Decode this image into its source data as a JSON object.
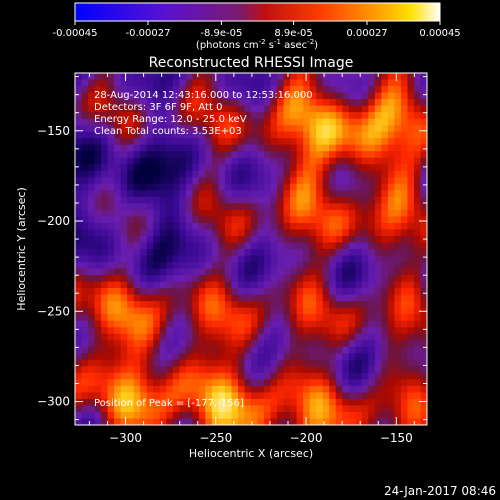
{
  "colorbar": {
    "tick_labels": [
      "-0.00045",
      "-0.00027",
      "-8.9e-05",
      "8.9e-05",
      "0.00027",
      "0.00045"
    ],
    "tick_values": [
      -0.00045,
      -0.00027,
      -8.9e-05,
      8.9e-05,
      0.00027,
      0.00045
    ],
    "range": [
      -0.00045,
      0.00045
    ],
    "unit_prefix": "(photons cm",
    "unit_exp1": "-2",
    "unit_mid1": " s",
    "unit_exp2": "-1",
    "unit_mid2": " asec",
    "unit_exp3": "-2",
    "unit_suffix": ")"
  },
  "chart_data": {
    "type": "heatmap",
    "title": "Reconstructed RHESSI Image",
    "xlabel": "Heliocentric X (arcsec)",
    "ylabel": "Heliocentric Y (arcsec)",
    "xlim": [
      -328,
      -133
    ],
    "ylim": [
      -313,
      -118
    ],
    "x_ticks": [
      -300,
      -250,
      -200,
      -150
    ],
    "y_ticks": [
      -300,
      -250,
      -200,
      -150
    ],
    "x_tick_labels": [
      "−300",
      "−250",
      "−200",
      "−150"
    ],
    "y_tick_labels": [
      "−300",
      "−250",
      "−200",
      "−150"
    ],
    "info_lines": [
      "28-Aug-2014 12:43:16.000 to 12:53:16.000",
      "Detectors: 3F 6F 9F, Att 0",
      "Energy Range: 12.0 - 25.0 keV",
      "Clean     Total counts: 3.53E+03"
    ],
    "peak_text": "Position of Peak = [-177,-156]",
    "peak_position": [
      -177,
      -156
    ],
    "colormap": "blue-purple-red-orange-yellow-white"
  },
  "footer": {
    "timestamp": "24-Jan-2017 08:46"
  }
}
